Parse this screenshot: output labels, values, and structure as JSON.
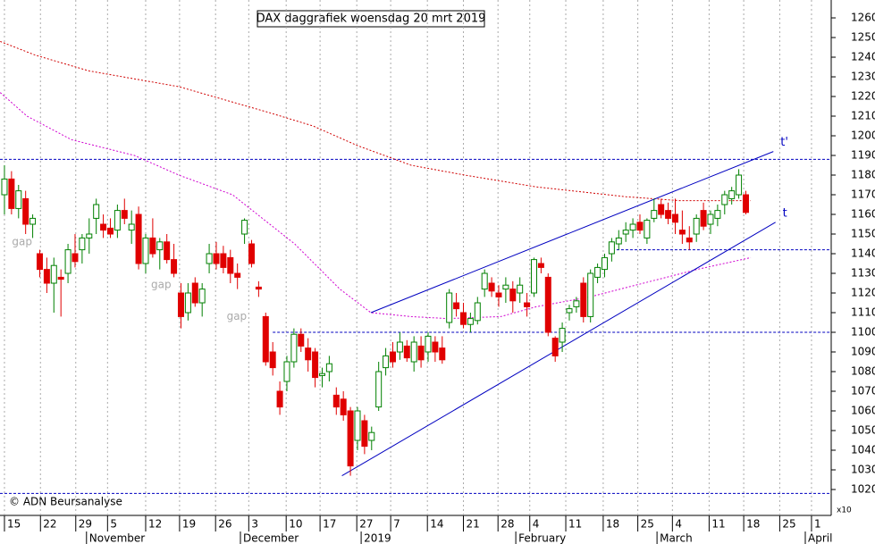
{
  "chart_data": {
    "type": "candlestick",
    "title": "DAX daggrafiek woensdag 20 mrt 2019",
    "credit": "© ADN Beursanalyse",
    "multiplier_label": "x10",
    "up_color": "#008000",
    "down_color": "#e00000",
    "xlim": [
      -0.63,
      117.09
    ],
    "ylim": [
      1010,
      1269.1
    ],
    "yticks": [
      1020,
      1030,
      1040,
      1050,
      1060,
      1070,
      1080,
      1090,
      1100,
      1110,
      1120,
      1130,
      1140,
      1150,
      1160,
      1170,
      1180,
      1190,
      1200,
      1210,
      1220,
      1230,
      1240,
      1250,
      1260
    ],
    "xticks": [
      {
        "value": 0,
        "label": "15"
      },
      {
        "value": 5.1,
        "label": "22"
      },
      {
        "value": 10.1,
        "label": "29"
      },
      {
        "value": 14.6,
        "label": "5"
      },
      {
        "value": 20,
        "label": "12"
      },
      {
        "value": 24.8,
        "label": "19"
      },
      {
        "value": 29.9,
        "label": "26"
      },
      {
        "value": 34.6,
        "label": "3"
      },
      {
        "value": 39.9,
        "label": "10"
      },
      {
        "value": 44.7,
        "label": "17"
      },
      {
        "value": 49.9,
        "label": "27"
      },
      {
        "value": 54.7,
        "label": "7"
      },
      {
        "value": 59.9,
        "label": "14"
      },
      {
        "value": 65,
        "label": "21"
      },
      {
        "value": 69.9,
        "label": "28"
      },
      {
        "value": 74.4,
        "label": "4"
      },
      {
        "value": 79.5,
        "label": "11"
      },
      {
        "value": 84.8,
        "label": "18"
      },
      {
        "value": 89.7,
        "label": "25"
      },
      {
        "value": 94.6,
        "label": "4"
      },
      {
        "value": 99.8,
        "label": "11"
      },
      {
        "value": 104.7,
        "label": "18"
      },
      {
        "value": 109.8,
        "label": "25"
      },
      {
        "value": 114.3,
        "label": "1"
      }
    ],
    "months": [
      {
        "value": 12.0,
        "label": "November"
      },
      {
        "value": 33.8,
        "label": "December"
      },
      {
        "value": 50.9,
        "label": "2019"
      },
      {
        "value": 72.8,
        "label": "February"
      },
      {
        "value": 92.8,
        "label": "March"
      },
      {
        "value": 113.8,
        "label": "April"
      }
    ],
    "x": [
      0,
      1,
      2,
      3,
      4,
      5,
      6,
      7,
      8,
      9,
      10,
      11,
      12,
      13,
      14,
      15,
      16,
      17,
      18,
      19,
      20,
      21,
      22,
      23,
      24,
      25,
      26,
      27,
      28,
      29,
      30,
      31,
      32,
      33,
      34,
      35,
      36,
      37,
      38,
      39,
      40,
      41,
      42,
      43,
      44,
      45,
      46,
      47,
      48,
      49,
      50,
      51,
      52,
      53,
      54,
      55,
      56,
      57,
      58,
      59,
      60,
      61,
      62,
      63,
      64,
      65,
      66,
      67,
      68,
      69,
      70,
      71,
      72,
      73,
      74,
      75,
      76,
      77,
      78,
      79,
      80,
      81,
      82,
      83,
      84,
      85,
      86,
      87,
      88,
      89,
      90,
      91,
      92,
      93,
      94,
      95,
      96,
      97,
      98,
      99,
      100,
      101,
      102,
      103,
      104,
      105
    ],
    "open": [
      1170,
      1178,
      1163,
      1168,
      1155,
      1140,
      1132,
      1125,
      1128,
      1130,
      1140,
      1142,
      1148,
      1158,
      1155,
      1153,
      1152,
      1162,
      1152,
      1160,
      1135,
      1148,
      1142,
      1146,
      1137,
      1120,
      1110,
      1125,
      1115,
      1135,
      1140,
      1140,
      1138,
      1130,
      1150,
      1145,
      1123,
      1108,
      1090,
      1070,
      1075,
      1085,
      1099,
      1092,
      1090,
      1078,
      1080,
      1068,
      1066,
      1060,
      1045,
      1055,
      1045,
      1062,
      1082,
      1090,
      1090,
      1093,
      1085,
      1093,
      1090,
      1095,
      1092,
      1105,
      1115,
      1110,
      1104,
      1106,
      1122,
      1125,
      1120,
      1122,
      1122,
      1120,
      1115,
      1120,
      1135,
      1128,
      1097,
      1095,
      1110,
      1113,
      1125,
      1108,
      1128,
      1132,
      1140,
      1145,
      1150,
      1152,
      1156,
      1148,
      1158,
      1165,
      1162,
      1160,
      1152,
      1148,
      1150,
      1162,
      1155,
      1158,
      1165,
      1168,
      1170,
      1170
    ],
    "high": [
      1185,
      1182,
      1175,
      1172,
      1160,
      1142,
      1138,
      1138,
      1132,
      1145,
      1150,
      1150,
      1158,
      1168,
      1160,
      1158,
      1165,
      1168,
      1162,
      1164,
      1150,
      1158,
      1148,
      1150,
      1145,
      1125,
      1125,
      1128,
      1125,
      1145,
      1146,
      1144,
      1142,
      1135,
      1158,
      1147,
      1126,
      1110,
      1095,
      1075,
      1088,
      1102,
      1102,
      1097,
      1092,
      1082,
      1088,
      1072,
      1070,
      1062,
      1062,
      1058,
      1052,
      1085,
      1092,
      1095,
      1100,
      1096,
      1098,
      1098,
      1100,
      1098,
      1098,
      1122,
      1120,
      1115,
      1110,
      1118,
      1132,
      1128,
      1124,
      1128,
      1126,
      1128,
      1120,
      1138,
      1138,
      1130,
      1098,
      1105,
      1114,
      1118,
      1128,
      1132,
      1135,
      1140,
      1148,
      1152,
      1156,
      1158,
      1160,
      1158,
      1168,
      1168,
      1166,
      1168,
      1162,
      1154,
      1160,
      1166,
      1162,
      1165,
      1172,
      1174,
      1183,
      1172
    ],
    "low": [
      1160,
      1160,
      1158,
      1150,
      1148,
      1128,
      1120,
      1110,
      1108,
      1125,
      1133,
      1135,
      1140,
      1150,
      1148,
      1148,
      1148,
      1155,
      1145,
      1132,
      1130,
      1138,
      1132,
      1135,
      1128,
      1102,
      1106,
      1113,
      1108,
      1130,
      1132,
      1130,
      1125,
      1122,
      1145,
      1133,
      1118,
      1083,
      1078,
      1058,
      1070,
      1082,
      1090,
      1080,
      1072,
      1072,
      1075,
      1058,
      1055,
      1027,
      1040,
      1038,
      1040,
      1060,
      1078,
      1082,
      1086,
      1085,
      1080,
      1082,
      1085,
      1085,
      1084,
      1102,
      1108,
      1102,
      1100,
      1104,
      1118,
      1118,
      1113,
      1115,
      1110,
      1115,
      1108,
      1118,
      1130,
      1098,
      1085,
      1090,
      1106,
      1110,
      1105,
      1105,
      1125,
      1128,
      1136,
      1142,
      1146,
      1148,
      1150,
      1145,
      1156,
      1158,
      1155,
      1150,
      1145,
      1142,
      1146,
      1152,
      1150,
      1154,
      1160,
      1165,
      1168,
      1160
    ],
    "close": [
      1178,
      1163,
      1172,
      1155,
      1158,
      1132,
      1125,
      1134,
      1127,
      1142,
      1136,
      1148,
      1150,
      1165,
      1152,
      1150,
      1162,
      1158,
      1155,
      1135,
      1148,
      1140,
      1146,
      1137,
      1130,
      1108,
      1120,
      1115,
      1122,
      1140,
      1135,
      1133,
      1130,
      1128,
      1157,
      1135,
      1122,
      1085,
      1082,
      1062,
      1085,
      1099,
      1093,
      1086,
      1077,
      1079,
      1084,
      1062,
      1058,
      1032,
      1060,
      1042,
      1049,
      1080,
      1088,
      1085,
      1095,
      1087,
      1095,
      1086,
      1098,
      1090,
      1086,
      1120,
      1112,
      1104,
      1107,
      1115,
      1130,
      1121,
      1118,
      1124,
      1116,
      1124,
      1113,
      1137,
      1133,
      1100,
      1088,
      1102,
      1112,
      1116,
      1108,
      1130,
      1133,
      1138,
      1146,
      1148,
      1152,
      1155,
      1152,
      1157,
      1162,
      1160,
      1158,
      1156,
      1150,
      1146,
      1158,
      1154,
      1160,
      1162,
      1170,
      1172,
      1180,
      1161
    ],
    "averages": [
      {
        "color": "#d00000",
        "x": [
          -0.6,
          4.4,
          12.0,
          24.7,
          37.3,
          43.7,
          50.0,
          57.6,
          65.2,
          75.3,
          88.0,
          95.6,
          105.7
        ],
        "values": [
          1248,
          1241,
          1233,
          1225,
          1212,
          1205,
          1195,
          1185,
          1180,
          1174,
          1169,
          1167,
          1167
        ]
      },
      {
        "color": "#d000d0",
        "x": [
          -0.6,
          3.2,
          9.5,
          18.4,
          24.7,
          32.3,
          41.1,
          47.5,
          51.9,
          57.6,
          62.7,
          70.3,
          75.3,
          82.9,
          90.5,
          98.1,
          105.7
        ],
        "values": [
          1222,
          1210,
          1198,
          1190,
          1180,
          1170,
          1145,
          1122,
          1110,
          1108,
          1107,
          1108,
          1113,
          1118,
          1125,
          1132,
          1138
        ]
      }
    ],
    "levels": [
      {
        "y": 1188,
        "x0": -0.63
      },
      {
        "y": 1142,
        "x0": 86.7
      },
      {
        "y": 1100,
        "x0": 38.0
      },
      {
        "y": 1018,
        "x0": -0.63
      }
    ],
    "trendlines": [
      {
        "label": "t'",
        "x": [
          51.9,
          108.9
        ],
        "y": [
          1110,
          1192
        ]
      },
      {
        "label": "t",
        "x": [
          47.8,
          109.2
        ],
        "y": [
          1027,
          1156
        ]
      }
    ],
    "gap_labels": [
      {
        "text": "gap",
        "x": 2.5,
        "y": 1146
      },
      {
        "text": "gap",
        "x": 22.2,
        "y": 1124
      },
      {
        "text": "gap",
        "x": 32.9,
        "y": 1108
      }
    ]
  }
}
